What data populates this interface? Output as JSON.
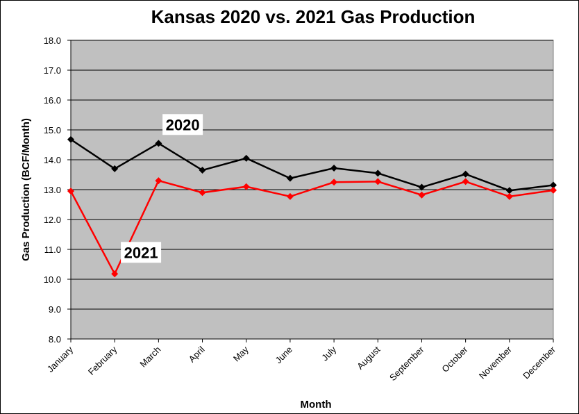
{
  "chart_data": {
    "type": "line",
    "title": "Kansas 2020 vs. 2021 Gas Production",
    "xlabel": "Month",
    "ylabel": "Gas Production (BCF/Month)",
    "ylim": [
      8.0,
      18.0
    ],
    "yticks": [
      "8.0",
      "9.0",
      "10.0",
      "11.0",
      "12.0",
      "13.0",
      "14.0",
      "15.0",
      "16.0",
      "17.0",
      "18.0"
    ],
    "grid": true,
    "categories": [
      "January",
      "February",
      "March",
      "April",
      "May",
      "June",
      "July",
      "August",
      "September",
      "October",
      "November",
      "December"
    ],
    "series": [
      {
        "name": "2020",
        "color": "#000000",
        "values": [
          14.68,
          13.7,
          14.55,
          13.65,
          14.05,
          13.38,
          13.72,
          13.55,
          13.08,
          13.52,
          12.97,
          13.15
        ]
      },
      {
        "name": "2021",
        "color": "#ff0000",
        "values": [
          12.95,
          10.18,
          13.3,
          12.9,
          13.1,
          12.77,
          13.25,
          13.27,
          12.82,
          13.27,
          12.77,
          12.98
        ]
      }
    ],
    "plot_background": "#c0c0c0"
  }
}
